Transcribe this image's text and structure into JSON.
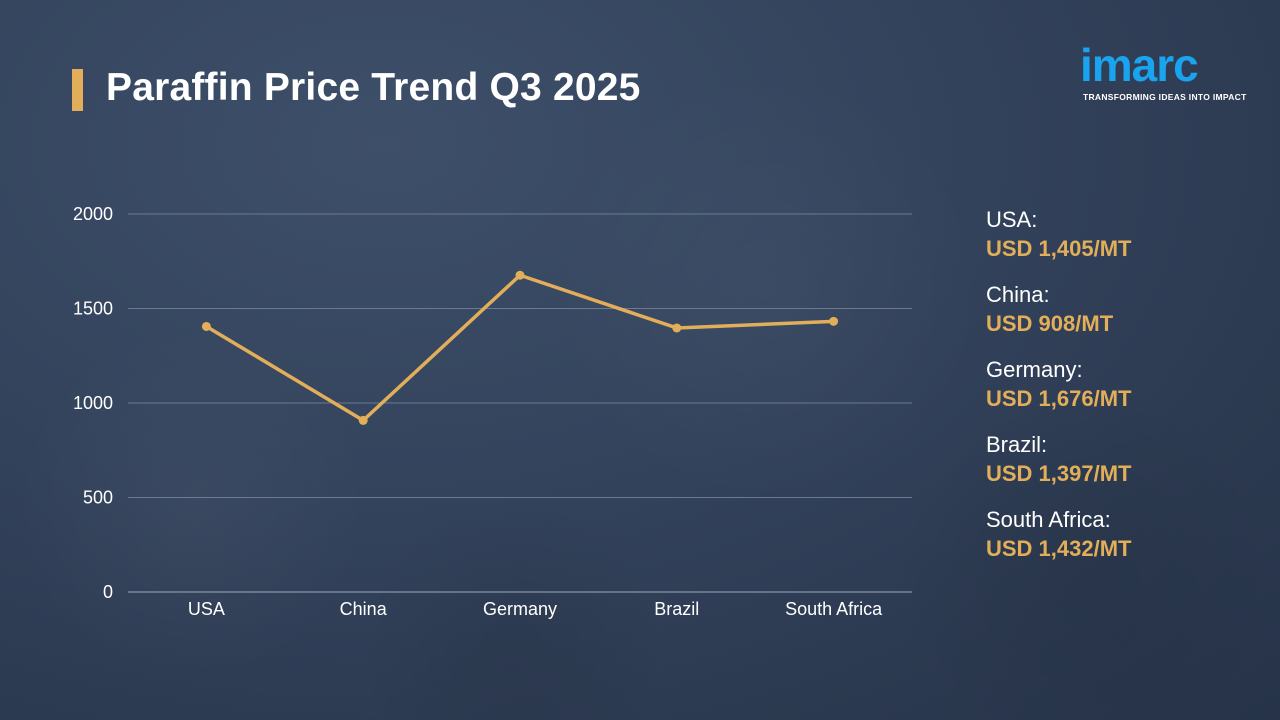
{
  "title": "Paraffin Price Trend Q3 2025",
  "logo": {
    "word": "imarc",
    "tagline": "TRANSFORMING IDEAS INTO IMPACT"
  },
  "colors": {
    "accent": "#e2ae5a",
    "brand": "#1aa3ee",
    "grid": "#6b7a92"
  },
  "chart_data": {
    "type": "line",
    "categories": [
      "USA",
      "China",
      "Germany",
      "Brazil",
      "South Africa"
    ],
    "values": [
      1405,
      908,
      1676,
      1397,
      1432
    ],
    "ylim": [
      0,
      2000
    ],
    "yticks": [
      0,
      500,
      1000,
      1500,
      2000
    ],
    "grid": true,
    "title": "",
    "xlabel": "",
    "ylabel": ""
  },
  "legend": [
    {
      "country": "USA:",
      "value": "USD 1,405/MT"
    },
    {
      "country": "China:",
      "value": "USD 908/MT"
    },
    {
      "country": "Germany:",
      "value": "USD 1,676/MT"
    },
    {
      "country": "Brazil:",
      "value": "USD 1,397/MT"
    },
    {
      "country": "South Africa:",
      "value": "USD 1,432/MT"
    }
  ]
}
